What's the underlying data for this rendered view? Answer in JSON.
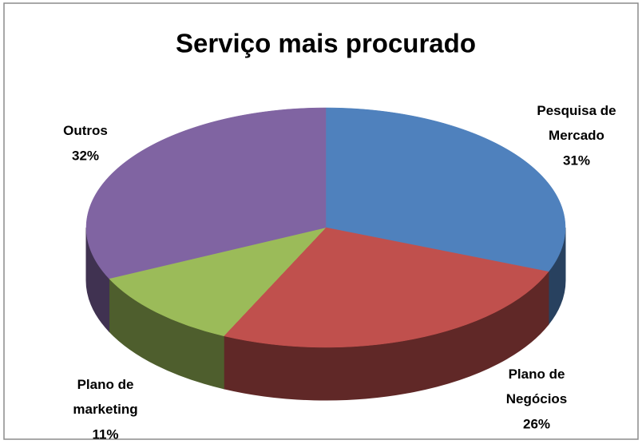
{
  "chart_data": {
    "type": "pie3d",
    "title": "Serviço mais procurado",
    "categories": [
      "Pesquisa de Mercado",
      "Plano de Negócios",
      "Plano de marketing",
      "Outros"
    ],
    "values": [
      31,
      26,
      11,
      32
    ],
    "value_labels": [
      "31%",
      "26%",
      "11%",
      "32%"
    ],
    "colors": [
      "#4f81bd",
      "#c0504d",
      "#9bbb59",
      "#8064a2"
    ]
  }
}
